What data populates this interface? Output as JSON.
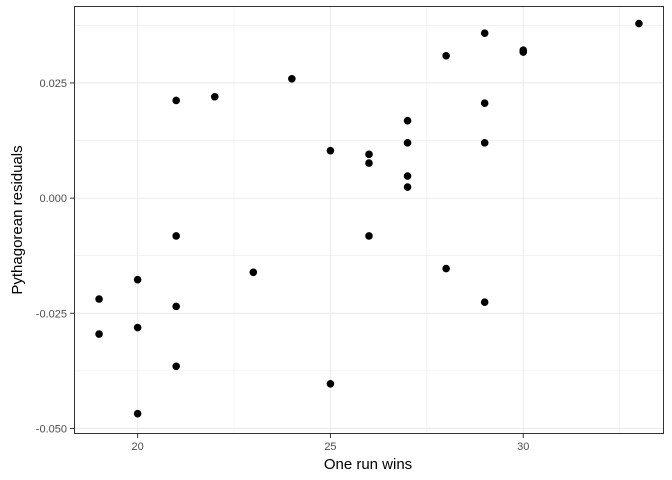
{
  "chart_data": {
    "type": "scatter",
    "xlabel": "One run wins",
    "ylabel": "Pythagorean residuals",
    "xlim": [
      18.35,
      33.65
    ],
    "ylim": [
      -0.0512,
      0.0417
    ],
    "xticks": [
      20,
      25,
      30
    ],
    "xtick_labels": [
      "20",
      "25",
      "30"
    ],
    "xminor": [
      22.5,
      27.5,
      32.5
    ],
    "yticks": [
      -0.05,
      -0.025,
      0.0,
      0.025
    ],
    "ytick_labels": [
      "-0.050",
      "-0.025",
      "0.000",
      "0.025"
    ],
    "yminor": [
      -0.0375,
      -0.0125,
      0.0125,
      0.0375
    ],
    "grid": true,
    "theme": "bw",
    "colors": {
      "point": "#000000",
      "grid": "#ebebeb",
      "border": "#333333",
      "background": "#ffffff"
    },
    "points": [
      {
        "x": 19,
        "y": -0.0219
      },
      {
        "x": 19,
        "y": -0.0295
      },
      {
        "x": 20,
        "y": -0.0177
      },
      {
        "x": 20,
        "y": -0.0281
      },
      {
        "x": 20,
        "y": -0.0468
      },
      {
        "x": 21,
        "y": 0.0212
      },
      {
        "x": 21,
        "y": -0.0082
      },
      {
        "x": 21,
        "y": -0.0235
      },
      {
        "x": 21,
        "y": -0.0365
      },
      {
        "x": 22,
        "y": 0.022
      },
      {
        "x": 23,
        "y": -0.0161
      },
      {
        "x": 24,
        "y": 0.0259
      },
      {
        "x": 25,
        "y": 0.0103
      },
      {
        "x": 25,
        "y": -0.0403
      },
      {
        "x": 26,
        "y": 0.0095
      },
      {
        "x": 26,
        "y": 0.0076
      },
      {
        "x": 26,
        "y": -0.0082
      },
      {
        "x": 27,
        "y": 0.0168
      },
      {
        "x": 27,
        "y": 0.012
      },
      {
        "x": 27,
        "y": 0.0048
      },
      {
        "x": 27,
        "y": 0.0024
      },
      {
        "x": 28,
        "y": 0.0309
      },
      {
        "x": 28,
        "y": -0.0153
      },
      {
        "x": 29,
        "y": 0.0358
      },
      {
        "x": 29,
        "y": 0.0206
      },
      {
        "x": 29,
        "y": 0.012
      },
      {
        "x": 29,
        "y": -0.0226
      },
      {
        "x": 30,
        "y": 0.0321
      },
      {
        "x": 30,
        "y": 0.0317
      },
      {
        "x": 33,
        "y": 0.0379
      }
    ]
  }
}
